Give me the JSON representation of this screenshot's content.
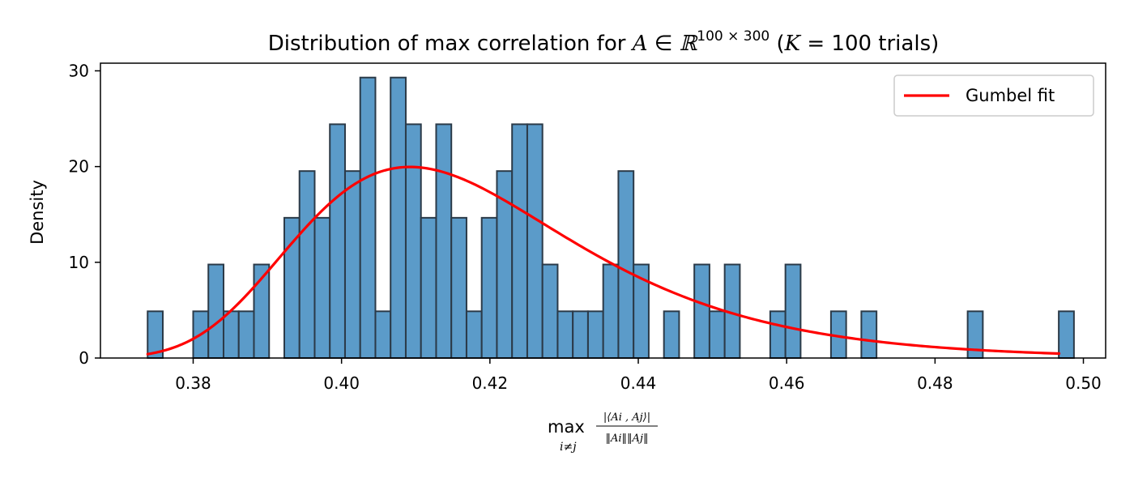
{
  "chart_data": {
    "type": "bar",
    "title": {
      "prefix": "Distribution of max correlation for ",
      "var_a": "A",
      "elem": " ∈ ",
      "real_sym": "ℝ",
      "dims": "100 × 300",
      "paren_open": " (",
      "var_k": "K",
      "eq": " = 100 trials)"
    },
    "xlabel": {
      "op": "max",
      "sub": "i≠j",
      "numerator": "|⟨Ai , Aj⟩|",
      "denominator": "‖Ai‖‖Aj‖"
    },
    "ylabel": "Density",
    "xlim": [
      0.3675,
      0.503
    ],
    "ylim": [
      0,
      30.8
    ],
    "xticks": [
      "0.38",
      "0.40",
      "0.42",
      "0.44",
      "0.46",
      "0.48",
      "0.50"
    ],
    "yticks": [
      "0",
      "10",
      "20",
      "30"
    ],
    "grid": false,
    "legend_position": "top-right",
    "bar_color": "#5b9bc9",
    "bar_edge_color": "#2b3a48",
    "bin_start": 0.37386,
    "bin_width": 0.002047,
    "values": [
      4.88,
      0,
      0,
      4.88,
      9.77,
      4.88,
      4.88,
      9.77,
      0,
      14.65,
      19.53,
      14.65,
      24.42,
      19.53,
      29.3,
      4.88,
      29.3,
      24.42,
      14.65,
      24.42,
      14.65,
      4.88,
      14.65,
      19.53,
      24.42,
      24.42,
      9.77,
      4.88,
      4.88,
      4.88,
      9.77,
      19.53,
      9.77,
      0,
      4.88,
      0,
      9.77,
      4.88,
      9.77,
      0,
      0,
      4.88,
      9.77,
      0,
      0,
      4.88,
      0,
      4.88,
      0,
      0,
      0,
      0,
      0,
      0,
      4.88,
      0,
      0,
      0,
      0,
      0,
      4.88
    ],
    "series": [
      {
        "name": "Gumbel fit",
        "kind": "line",
        "color": "#ff0000",
        "mu": 0.40923,
        "beta": 0.01843,
        "x_range": [
          0.37386,
          0.49673
        ]
      }
    ]
  }
}
